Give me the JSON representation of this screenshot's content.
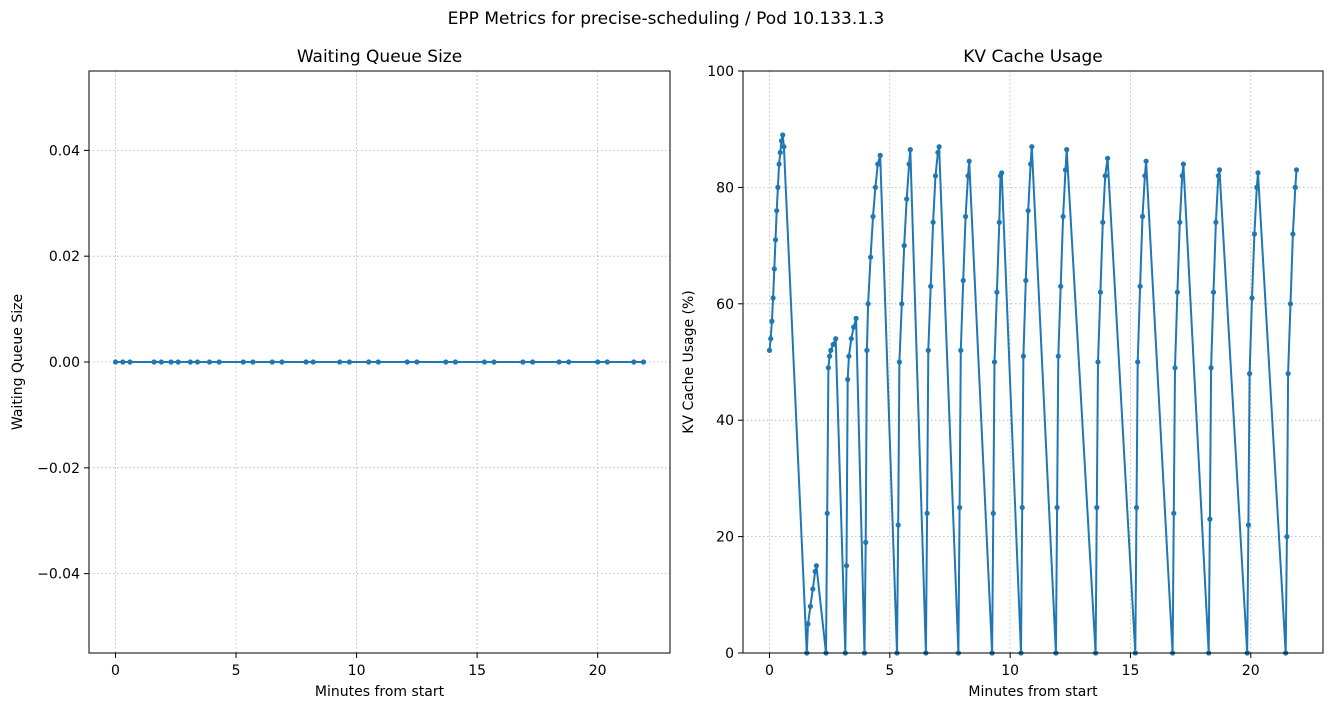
{
  "figure": {
    "suptitle": "EPP Metrics for precise-scheduling / Pod 10.133.1.3"
  },
  "chart_data": [
    {
      "type": "line",
      "title": "Waiting Queue Size",
      "xlabel": "Minutes from start",
      "ylabel": "Waiting Queue Size",
      "xlim": [
        -1.1,
        23.0
      ],
      "ylim": [
        -0.055,
        0.055
      ],
      "xticks": [
        0,
        5,
        10,
        15,
        20
      ],
      "xtick_labels": [
        "0",
        "5",
        "10",
        "15",
        "20"
      ],
      "yticks": [
        -0.04,
        -0.02,
        0.0,
        0.02,
        0.04
      ],
      "ytick_labels": [
        "−0.04",
        "−0.02",
        "0.00",
        "0.02",
        "0.04"
      ],
      "grid": true,
      "series": [
        {
          "color": "#1f77b4",
          "marker": "dot",
          "points": [
            [
              0,
              0
            ],
            [
              0.3,
              0
            ],
            [
              0.6,
              0
            ],
            [
              1.6,
              0
            ],
            [
              1.9,
              0
            ],
            [
              2.3,
              0
            ],
            [
              2.6,
              0
            ],
            [
              3.1,
              0
            ],
            [
              3.4,
              0
            ],
            [
              3.9,
              0
            ],
            [
              4.3,
              0
            ],
            [
              5.3,
              0
            ],
            [
              5.7,
              0
            ],
            [
              6.5,
              0
            ],
            [
              6.9,
              0
            ],
            [
              7.9,
              0
            ],
            [
              8.2,
              0
            ],
            [
              9.3,
              0
            ],
            [
              9.7,
              0
            ],
            [
              10.5,
              0
            ],
            [
              10.9,
              0
            ],
            [
              12.1,
              0
            ],
            [
              12.5,
              0
            ],
            [
              13.7,
              0
            ],
            [
              14.1,
              0
            ],
            [
              15.3,
              0
            ],
            [
              15.7,
              0
            ],
            [
              16.9,
              0
            ],
            [
              17.3,
              0
            ],
            [
              18.4,
              0
            ],
            [
              18.8,
              0
            ],
            [
              20.0,
              0
            ],
            [
              20.4,
              0
            ],
            [
              21.5,
              0
            ],
            [
              21.9,
              0
            ]
          ]
        }
      ]
    },
    {
      "type": "line",
      "title": "KV Cache Usage",
      "xlabel": "Minutes from start",
      "ylabel": "KV Cache Usage (%)",
      "xlim": [
        -1.1,
        23.0
      ],
      "ylim": [
        0,
        100
      ],
      "xticks": [
        0,
        5,
        10,
        15,
        20
      ],
      "xtick_labels": [
        "0",
        "5",
        "10",
        "15",
        "20"
      ],
      "yticks": [
        0,
        20,
        40,
        60,
        80,
        100
      ],
      "ytick_labels": [
        "0",
        "20",
        "40",
        "60",
        "80",
        "100"
      ],
      "grid": true,
      "series": [
        {
          "color": "#1f77b4",
          "marker": "dot",
          "points": [
            [
              0.0,
              52
            ],
            [
              0.05,
              54
            ],
            [
              0.1,
              57
            ],
            [
              0.15,
              61
            ],
            [
              0.2,
              66
            ],
            [
              0.25,
              71
            ],
            [
              0.3,
              76
            ],
            [
              0.35,
              80
            ],
            [
              0.4,
              84
            ],
            [
              0.45,
              86
            ],
            [
              0.5,
              88
            ],
            [
              0.55,
              89
            ],
            [
              0.6,
              87
            ],
            [
              1.55,
              0
            ],
            [
              1.6,
              5
            ],
            [
              1.7,
              8
            ],
            [
              1.8,
              11
            ],
            [
              1.9,
              14
            ],
            [
              1.95,
              15
            ],
            [
              2.35,
              0
            ],
            [
              2.4,
              24
            ],
            [
              2.45,
              49
            ],
            [
              2.5,
              51
            ],
            [
              2.55,
              52
            ],
            [
              2.65,
              53
            ],
            [
              2.75,
              54
            ],
            [
              3.15,
              0
            ],
            [
              3.2,
              15
            ],
            [
              3.25,
              47
            ],
            [
              3.3,
              51
            ],
            [
              3.4,
              54
            ],
            [
              3.5,
              56
            ],
            [
              3.6,
              57.5
            ],
            [
              3.95,
              0
            ],
            [
              4.0,
              19
            ],
            [
              4.05,
              52
            ],
            [
              4.1,
              60
            ],
            [
              4.2,
              68
            ],
            [
              4.3,
              75
            ],
            [
              4.4,
              80
            ],
            [
              4.5,
              84
            ],
            [
              4.6,
              85.5
            ],
            [
              5.3,
              0
            ],
            [
              5.35,
              22
            ],
            [
              5.4,
              50
            ],
            [
              5.5,
              60
            ],
            [
              5.6,
              70
            ],
            [
              5.7,
              78
            ],
            [
              5.8,
              84
            ],
            [
              5.85,
              86.5
            ],
            [
              6.5,
              0
            ],
            [
              6.55,
              24
            ],
            [
              6.6,
              52
            ],
            [
              6.7,
              63
            ],
            [
              6.8,
              74
            ],
            [
              6.9,
              82
            ],
            [
              7.0,
              86
            ],
            [
              7.05,
              87
            ],
            [
              7.85,
              0
            ],
            [
              7.9,
              25
            ],
            [
              7.95,
              52
            ],
            [
              8.05,
              64
            ],
            [
              8.15,
              75
            ],
            [
              8.25,
              82
            ],
            [
              8.3,
              84.5
            ],
            [
              9.25,
              0
            ],
            [
              9.3,
              24
            ],
            [
              9.35,
              50
            ],
            [
              9.45,
              62
            ],
            [
              9.55,
              74
            ],
            [
              9.6,
              82
            ],
            [
              9.65,
              82.5
            ],
            [
              10.45,
              0
            ],
            [
              10.5,
              25
            ],
            [
              10.55,
              51
            ],
            [
              10.65,
              64
            ],
            [
              10.75,
              76
            ],
            [
              10.85,
              84
            ],
            [
              10.9,
              87
            ],
            [
              11.9,
              0
            ],
            [
              11.95,
              25
            ],
            [
              12.0,
              51
            ],
            [
              12.1,
              63
            ],
            [
              12.2,
              75
            ],
            [
              12.3,
              83
            ],
            [
              12.35,
              86.5
            ],
            [
              13.55,
              0
            ],
            [
              13.6,
              25
            ],
            [
              13.65,
              50
            ],
            [
              13.75,
              62
            ],
            [
              13.85,
              74
            ],
            [
              13.95,
              82
            ],
            [
              14.05,
              85
            ],
            [
              15.2,
              0
            ],
            [
              15.25,
              25
            ],
            [
              15.3,
              50
            ],
            [
              15.4,
              63
            ],
            [
              15.5,
              75
            ],
            [
              15.6,
              82
            ],
            [
              15.65,
              84.5
            ],
            [
              16.75,
              0
            ],
            [
              16.8,
              24
            ],
            [
              16.85,
              49
            ],
            [
              16.95,
              62
            ],
            [
              17.05,
              74
            ],
            [
              17.15,
              82
            ],
            [
              17.2,
              84
            ],
            [
              18.25,
              0
            ],
            [
              18.3,
              23
            ],
            [
              18.35,
              49
            ],
            [
              18.45,
              62
            ],
            [
              18.55,
              74
            ],
            [
              18.65,
              82
            ],
            [
              18.7,
              83
            ],
            [
              19.85,
              0
            ],
            [
              19.9,
              22
            ],
            [
              19.95,
              48
            ],
            [
              20.05,
              61
            ],
            [
              20.15,
              72
            ],
            [
              20.25,
              80
            ],
            [
              20.3,
              82.5
            ],
            [
              21.45,
              0
            ],
            [
              21.5,
              20
            ],
            [
              21.55,
              48
            ],
            [
              21.65,
              60
            ],
            [
              21.75,
              72
            ],
            [
              21.85,
              80
            ],
            [
              21.9,
              83
            ]
          ]
        }
      ]
    }
  ]
}
